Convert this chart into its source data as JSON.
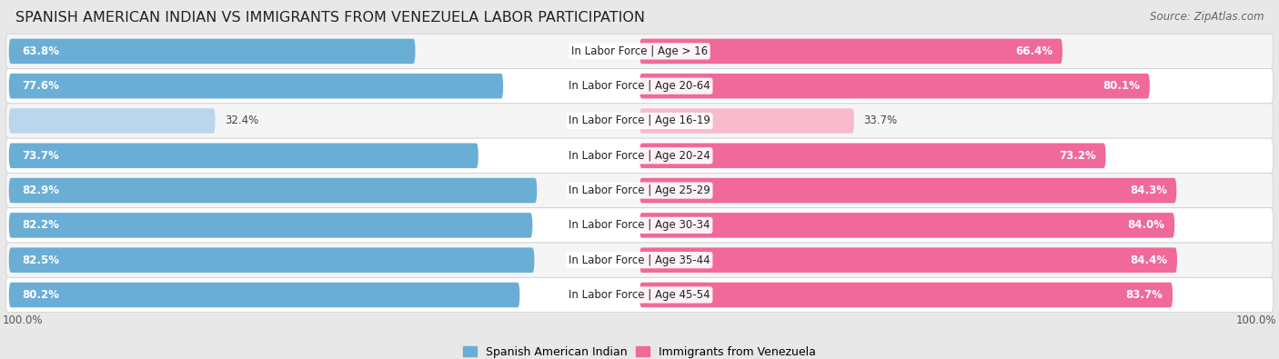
{
  "title": "SPANISH AMERICAN INDIAN VS IMMIGRANTS FROM VENEZUELA LABOR PARTICIPATION",
  "source": "Source: ZipAtlas.com",
  "categories": [
    "In Labor Force | Age > 16",
    "In Labor Force | Age 20-64",
    "In Labor Force | Age 16-19",
    "In Labor Force | Age 20-24",
    "In Labor Force | Age 25-29",
    "In Labor Force | Age 30-34",
    "In Labor Force | Age 35-44",
    "In Labor Force | Age 45-54"
  ],
  "left_values": [
    63.8,
    77.6,
    32.4,
    73.7,
    82.9,
    82.2,
    82.5,
    80.2
  ],
  "right_values": [
    66.4,
    80.1,
    33.7,
    73.2,
    84.3,
    84.0,
    84.4,
    83.7
  ],
  "left_color": "#6AAED6",
  "right_color": "#F0699A",
  "left_color_light": "#BAD6EA",
  "right_color_light": "#F9BBCC",
  "left_label": "Spanish American Indian",
  "right_label": "Immigrants from Venezuela",
  "background_color": "#e8e8e8",
  "row_bg_even": "#f5f5f5",
  "row_bg_odd": "#ffffff",
  "title_fontsize": 11.5,
  "source_fontsize": 8.5,
  "label_fontsize": 8.5,
  "value_fontsize": 8.5,
  "footer_fontsize": 8.5,
  "max_value": 100.0,
  "footer_value": "100.0%"
}
